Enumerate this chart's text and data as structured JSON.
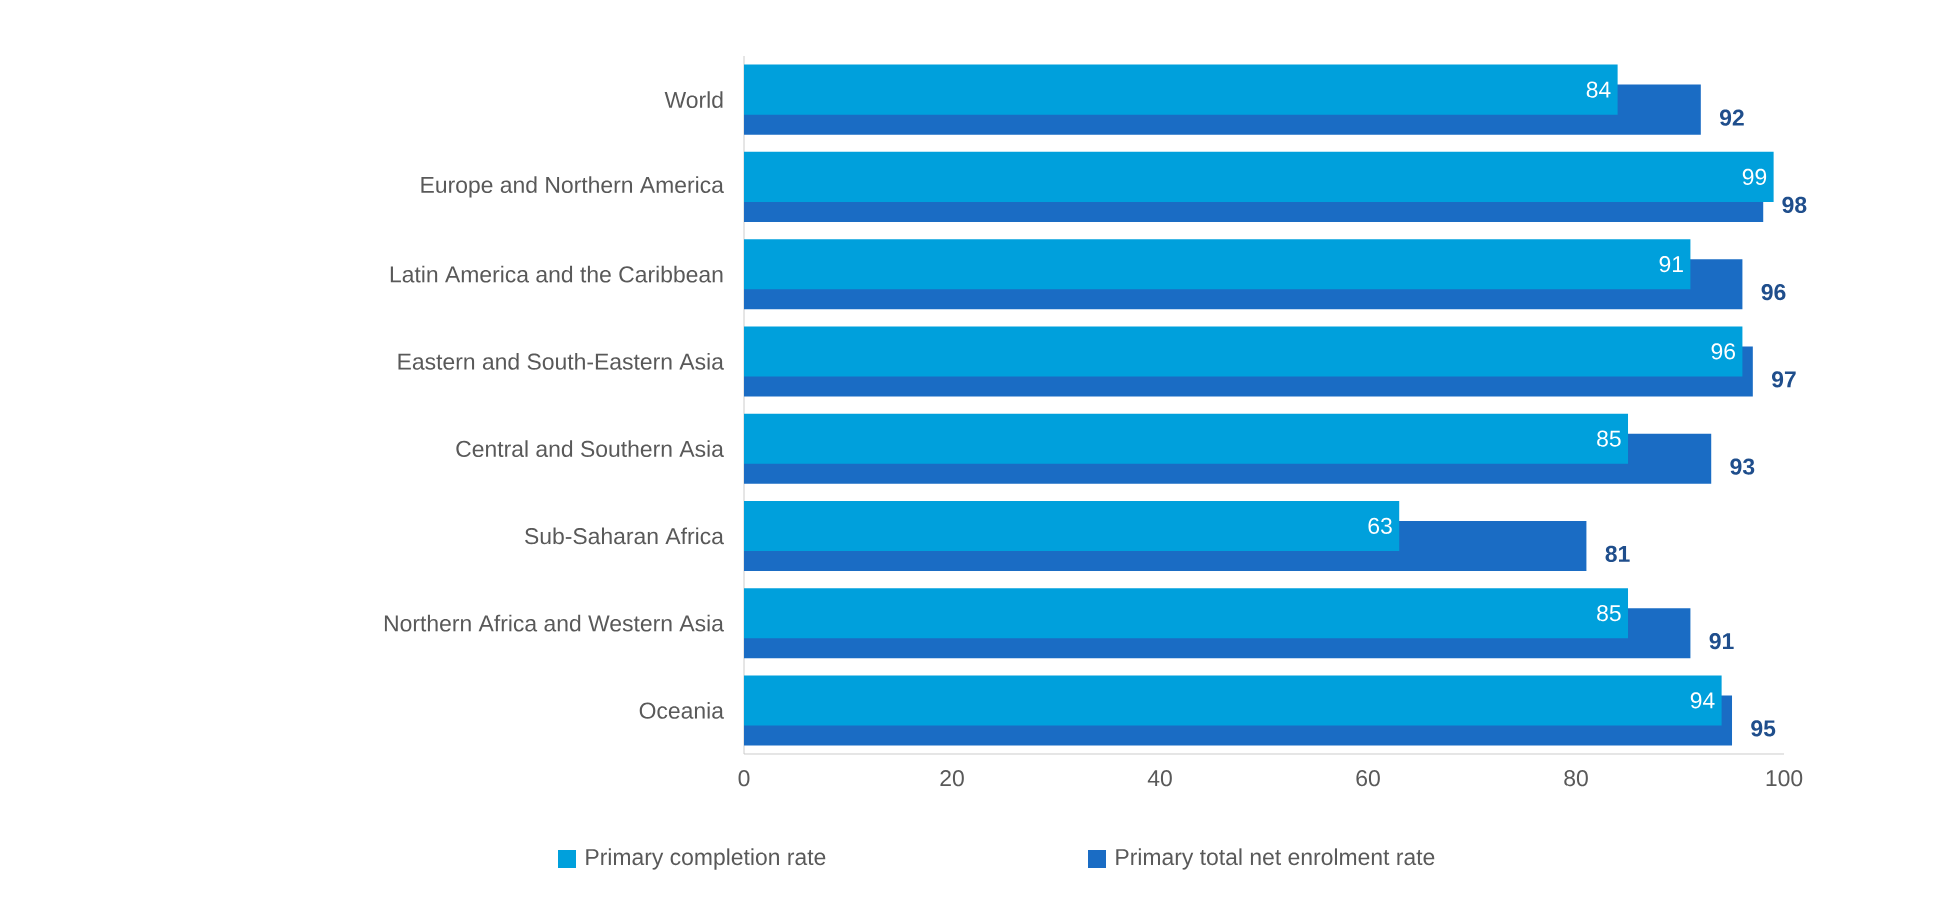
{
  "chart_data": {
    "type": "bar",
    "orientation": "horizontal",
    "categories": [
      "World",
      "Europe and Northern America",
      "Latin America and the Caribbean",
      "Eastern and South-Eastern Asia",
      "Central and Southern Asia",
      "Sub-Saharan Africa",
      "Northern Africa and Western Asia",
      "Oceania"
    ],
    "series": [
      {
        "name": "Primary completion rate",
        "color": "#00a0dc",
        "values": [
          84,
          99,
          91,
          96,
          85,
          63,
          85,
          94
        ]
      },
      {
        "name": "Primary total net enrolment rate",
        "color": "#1a6cc4",
        "values": [
          92,
          98,
          96,
          97,
          93,
          81,
          91,
          95
        ]
      }
    ],
    "xlim": [
      0,
      100
    ],
    "xticks": [
      0,
      20,
      40,
      60,
      80,
      100
    ],
    "data_labels": true,
    "legend": "bottom",
    "grid": false
  }
}
